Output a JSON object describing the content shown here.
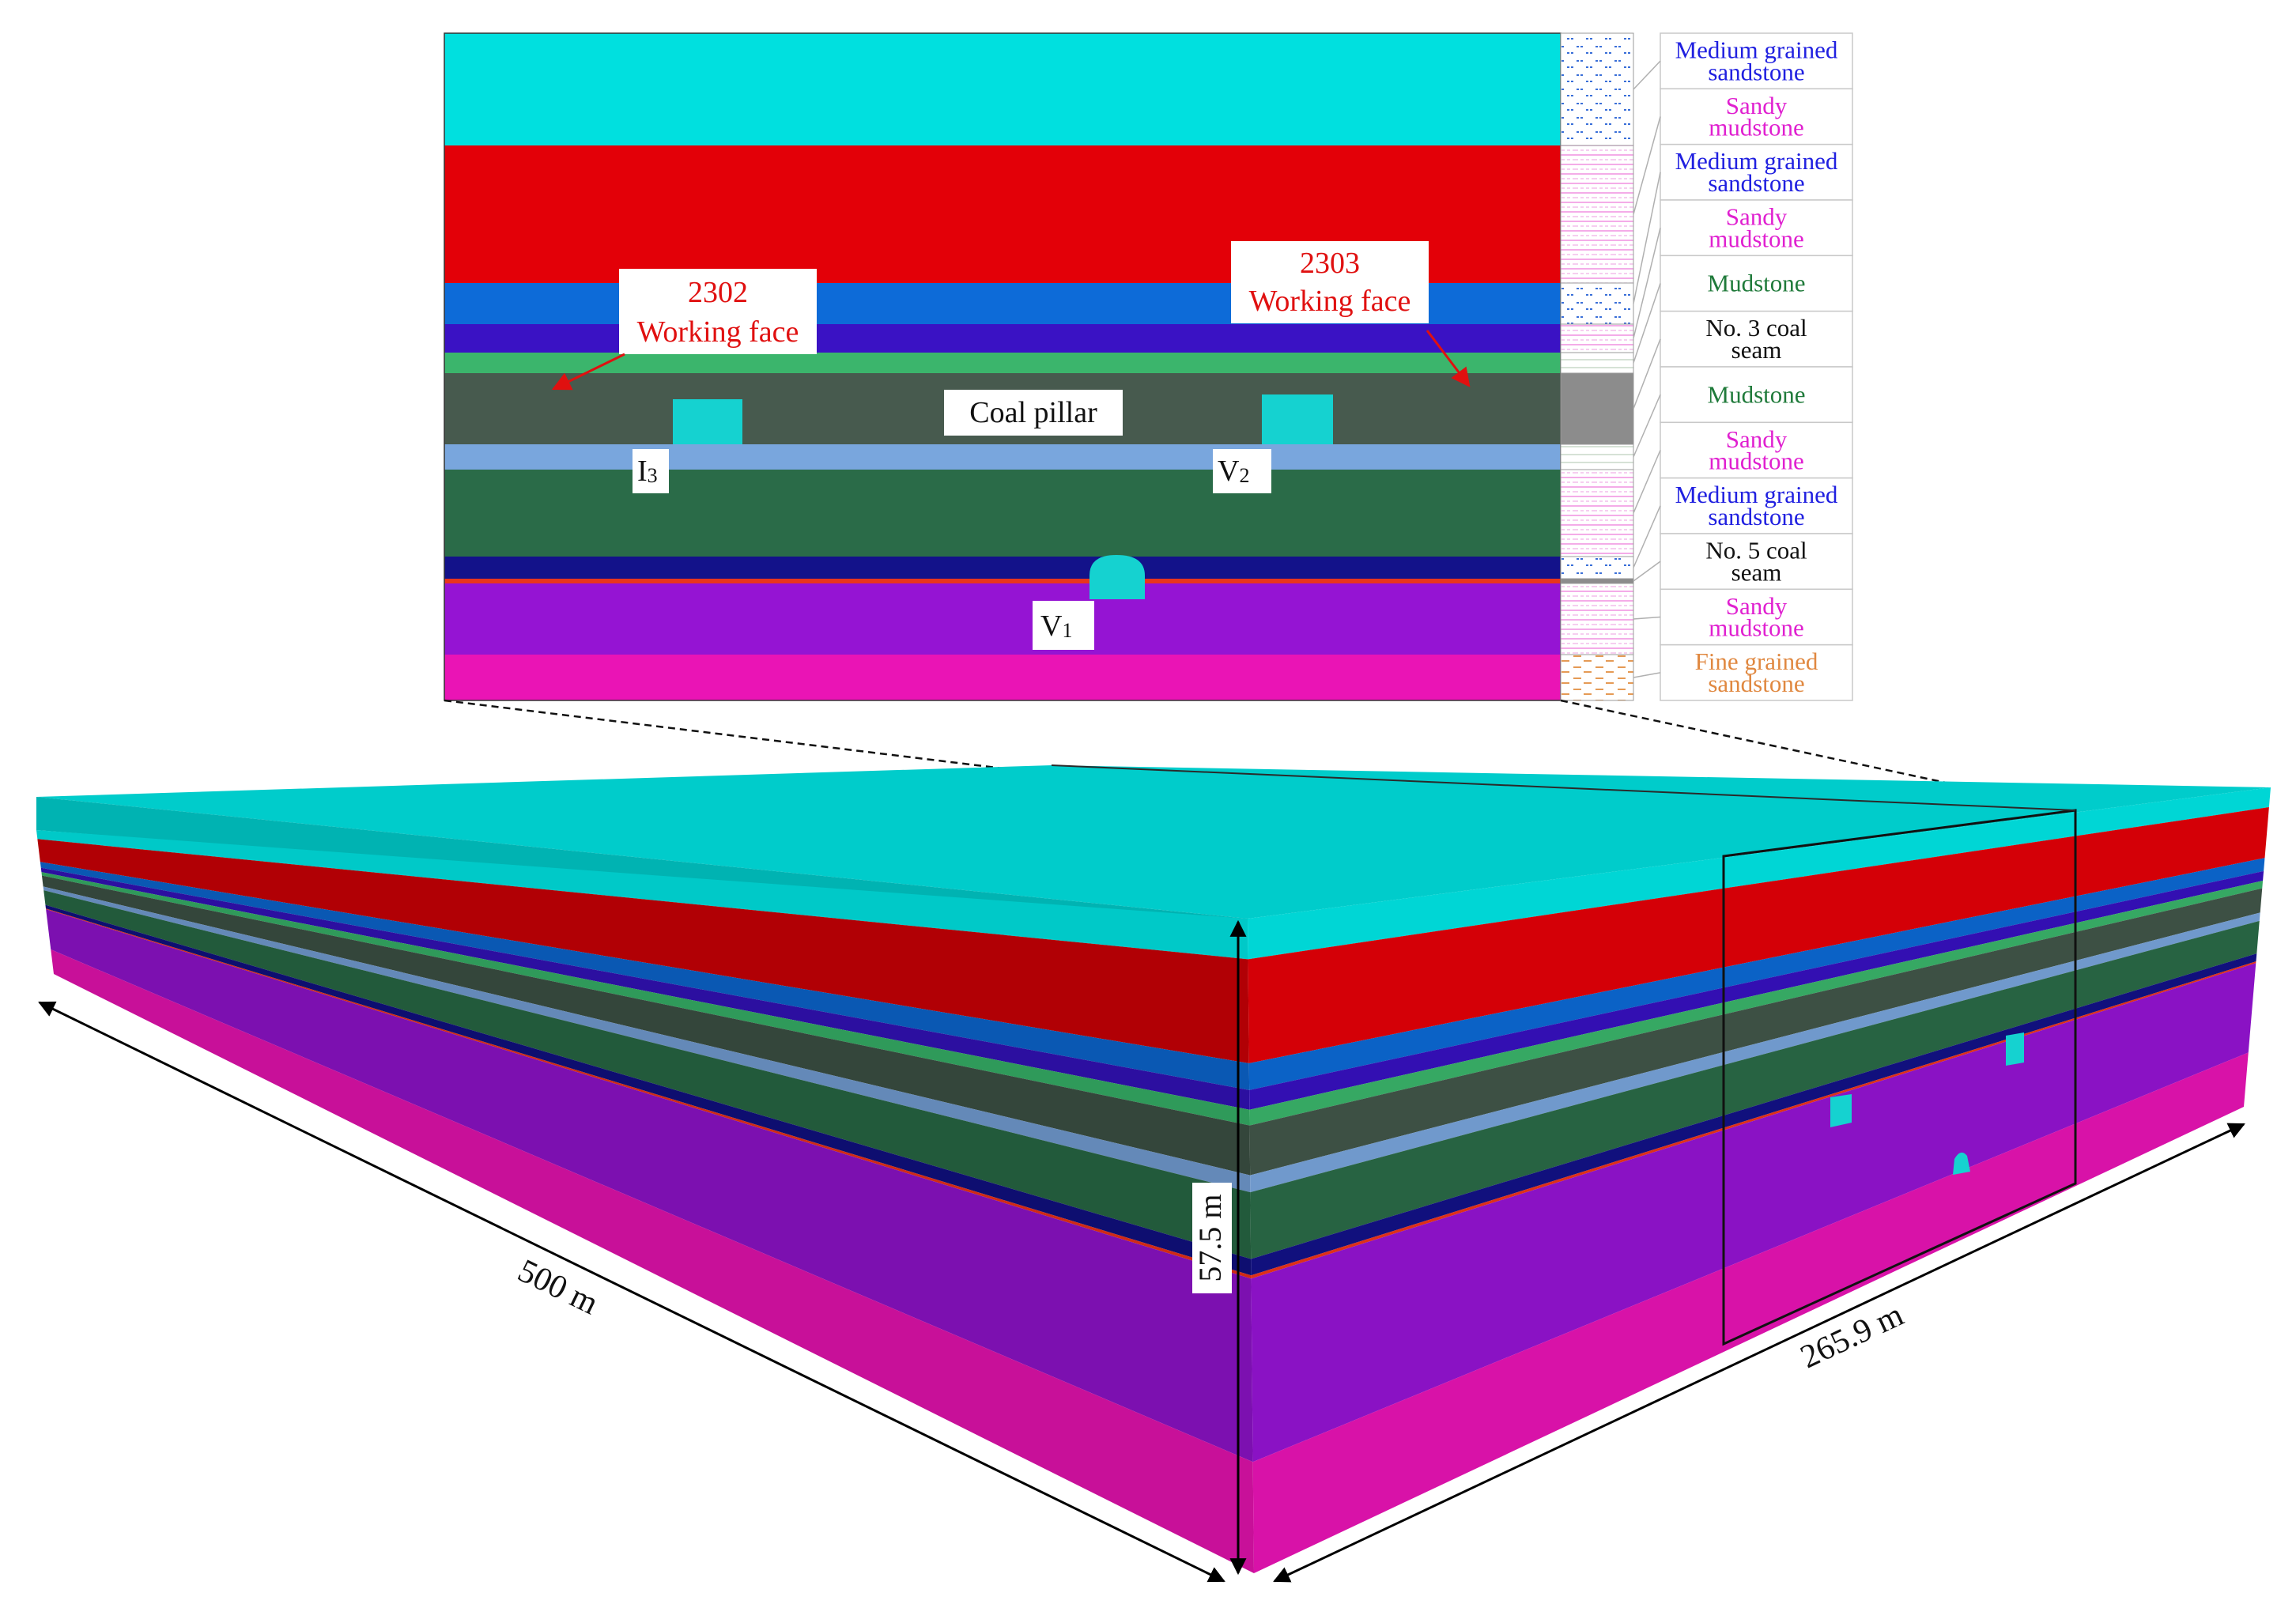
{
  "section": {
    "layers": [
      {
        "color": "#00e0df",
        "litho_index": 0
      },
      {
        "color": "#e30008",
        "litho_index": 1
      },
      {
        "color": "#0d6bd8",
        "litho_index": 2
      },
      {
        "color": "#3a12c4",
        "litho_index": 3
      },
      {
        "color": "#3bb56c",
        "litho_index": 4
      },
      {
        "color": "#475a4e",
        "litho_index": 5
      },
      {
        "color": "#79a6dd",
        "litho_index": 6
      },
      {
        "color": "#2a6b48",
        "litho_index": 7
      },
      {
        "color": "#13128a",
        "litho_index": 8
      },
      {
        "color": "#e8351c",
        "litho_index": 9
      },
      {
        "color": "#9514d3",
        "litho_index": 10
      },
      {
        "color": "#ea14b5",
        "litho_index": 11
      }
    ],
    "roadway_color": "#15d2d0",
    "labels": {
      "face_2302_number": "2302",
      "face_2302_text": "Working face",
      "face_2303_number": "2303",
      "face_2303_text": "Working face",
      "coal_pillar": "Coal pillar",
      "roadway_i3_letter": "I",
      "roadway_i3_sub": "3",
      "roadway_v2_letter": "V",
      "roadway_v2_sub": "2",
      "roadway_v1_letter": "V",
      "roadway_v1_sub": "1"
    },
    "label_color": "#e01010"
  },
  "stratigraphy": [
    {
      "lines": [
        "Medium grained",
        "sandstone"
      ],
      "color": "#2020e0",
      "pattern": "sandstone"
    },
    {
      "lines": [
        "Sandy",
        "mudstone"
      ],
      "color": "#e020d0",
      "pattern": "sandy"
    },
    {
      "lines": [
        "Medium grained",
        "sandstone"
      ],
      "color": "#2020e0",
      "pattern": "sandstone"
    },
    {
      "lines": [
        "Sandy",
        "mudstone"
      ],
      "color": "#e020d0",
      "pattern": "sandy"
    },
    {
      "lines": [
        "Mudstone"
      ],
      "color": "#1f7a3a",
      "pattern": "mud"
    },
    {
      "lines": [
        "No. 3 coal",
        "seam"
      ],
      "color": "#111111",
      "pattern": "coal"
    },
    {
      "lines": [
        "Mudstone"
      ],
      "color": "#1f7a3a",
      "pattern": "mud"
    },
    {
      "lines": [
        "Sandy",
        "mudstone"
      ],
      "color": "#e020d0",
      "pattern": "sandy"
    },
    {
      "lines": [
        "Medium grained",
        "sandstone"
      ],
      "color": "#2020e0",
      "pattern": "sandstone"
    },
    {
      "lines": [
        "No. 5 coal",
        "seam"
      ],
      "color": "#111111",
      "pattern": "coal"
    },
    {
      "lines": [
        "Sandy",
        "mudstone"
      ],
      "color": "#e020d0",
      "pattern": "sandy"
    },
    {
      "lines": [
        "Fine grained",
        "sandstone"
      ],
      "color": "#e08840",
      "pattern": "fine"
    }
  ],
  "model": {
    "dimensions": {
      "length": "500 m",
      "width": "265.9 m",
      "height": "57.5 m"
    },
    "front_shades": [
      "#00c9c8",
      "#b10005",
      "#0a58b3",
      "#2c0fa0",
      "#2f9a5a",
      "#34463b",
      "#6489b8",
      "#225a3b",
      "#0e0e70",
      "#d02a15",
      "#7c10b0",
      "#c81099"
    ],
    "side_shades": [
      "#00d6d5",
      "#d40007",
      "#0b62c6",
      "#330fb2",
      "#36a863",
      "#3d5044",
      "#7099cc",
      "#276342",
      "#11107d",
      "#dd3018",
      "#8a12c4",
      "#d812a8"
    ]
  }
}
